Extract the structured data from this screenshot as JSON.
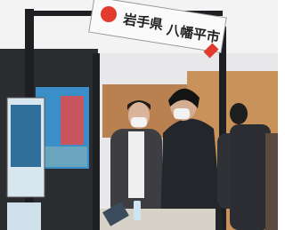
{
  "sign": {
    "prefecture": "岩手県",
    "city": "八幡平市"
  }
}
